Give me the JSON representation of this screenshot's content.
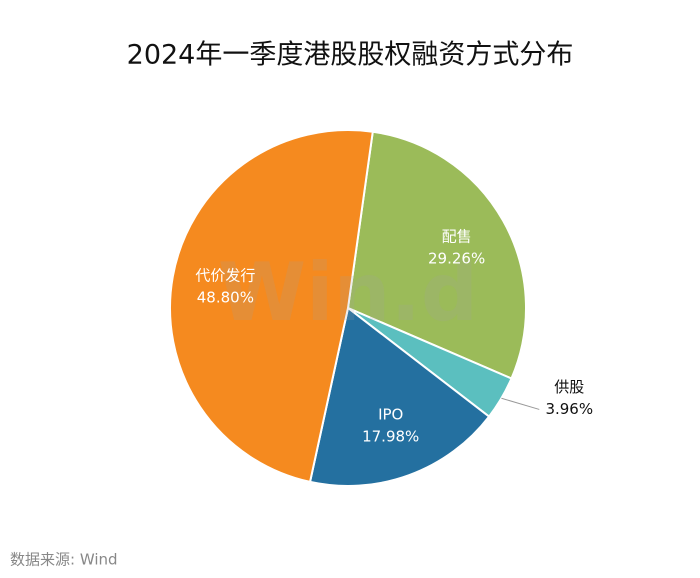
{
  "chart_data": {
    "type": "pie",
    "title": "2024年一季度港股股权融资方式分布",
    "categories": [
      "配售",
      "供股",
      "IPO",
      "代价发行"
    ],
    "values": [
      29.26,
      3.96,
      17.98,
      48.8
    ],
    "value_labels": [
      "29.26%",
      "3.96%",
      "17.98%",
      "48.80%"
    ],
    "colors": [
      "#9bbb59",
      "#5bbfbf",
      "#2470a0",
      "#f58a1f"
    ],
    "watermark": "Win.d",
    "source": "数据来源: Wind"
  }
}
